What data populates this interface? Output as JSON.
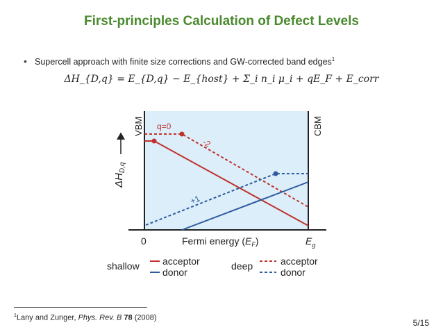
{
  "slide": {
    "title": "First-principles Calculation of Defect Levels",
    "bullet": "Supercell approach with finite size corrections and GW-corrected band edges",
    "bullet_ref": "1",
    "equation": "ΔH_{D,q} = E_{D,q} − E_{host} + Σ_i n_i μ_i + qE_F + E_corr",
    "page": "5/15"
  },
  "footnote": {
    "marker": "1",
    "authors": "Lany and Zunger, ",
    "journal": "Phys. Rev. B ",
    "volume": "78",
    "year": " (2008)"
  },
  "diagram": {
    "y_axis_label": "ΔH",
    "y_axis_sub": "D,q",
    "vbm_label": "VBM",
    "cbm_label": "CBM",
    "x_axis_label": "Fermi energy (",
    "x_axis_var": "E",
    "x_axis_var_sub": "F",
    "x_axis_close": ")",
    "x_zero": "0",
    "x_end": "E",
    "x_end_sub": "g",
    "label_q0": "q=0",
    "label_m2": "-2",
    "label_p1": "+1",
    "legend": {
      "shallow": "shallow",
      "deep": "deep",
      "acceptor": "acceptor",
      "donor": "donor"
    },
    "colors": {
      "acceptor": "#c0312b",
      "donor": "#2f5b9e",
      "gap_fill": "#dbeefa",
      "title": "#4a8a2e"
    }
  }
}
